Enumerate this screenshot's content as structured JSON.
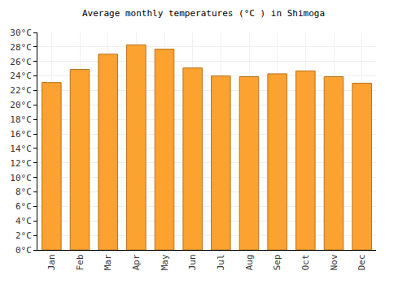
{
  "chart_data": {
    "type": "bar",
    "title": "Average monthly temperatures (°C ) in Shimoga",
    "categories": [
      "Jan",
      "Feb",
      "Mar",
      "Apr",
      "May",
      "Jun",
      "Jul",
      "Aug",
      "Sep",
      "Oct",
      "Nov",
      "Dec"
    ],
    "values": [
      23.1,
      24.9,
      27.0,
      28.3,
      27.7,
      25.1,
      24.0,
      23.9,
      24.3,
      24.7,
      23.9,
      23.0
    ],
    "color": "#fba230",
    "ylim": [
      0,
      30
    ],
    "yticks": [
      {
        "value": 0,
        "label": "0°C"
      },
      {
        "value": 2,
        "label": "2°C"
      },
      {
        "value": 4,
        "label": "4°C"
      },
      {
        "value": 6,
        "label": "6°C"
      },
      {
        "value": 8,
        "label": "8°C"
      },
      {
        "value": 10,
        "label": "10°C"
      },
      {
        "value": 12,
        "label": "12°C"
      },
      {
        "value": 14,
        "label": "14°C"
      },
      {
        "value": 16,
        "label": "16°C"
      },
      {
        "value": 18,
        "label": "18°C"
      },
      {
        "value": 20,
        "label": "20°C"
      },
      {
        "value": 22,
        "label": "22°C"
      },
      {
        "value": 24,
        "label": "24°C"
      },
      {
        "value": 26,
        "label": "26°C"
      },
      {
        "value": 28,
        "label": "28°C"
      },
      {
        "value": 30,
        "label": "30°C"
      }
    ],
    "grid": true
  }
}
